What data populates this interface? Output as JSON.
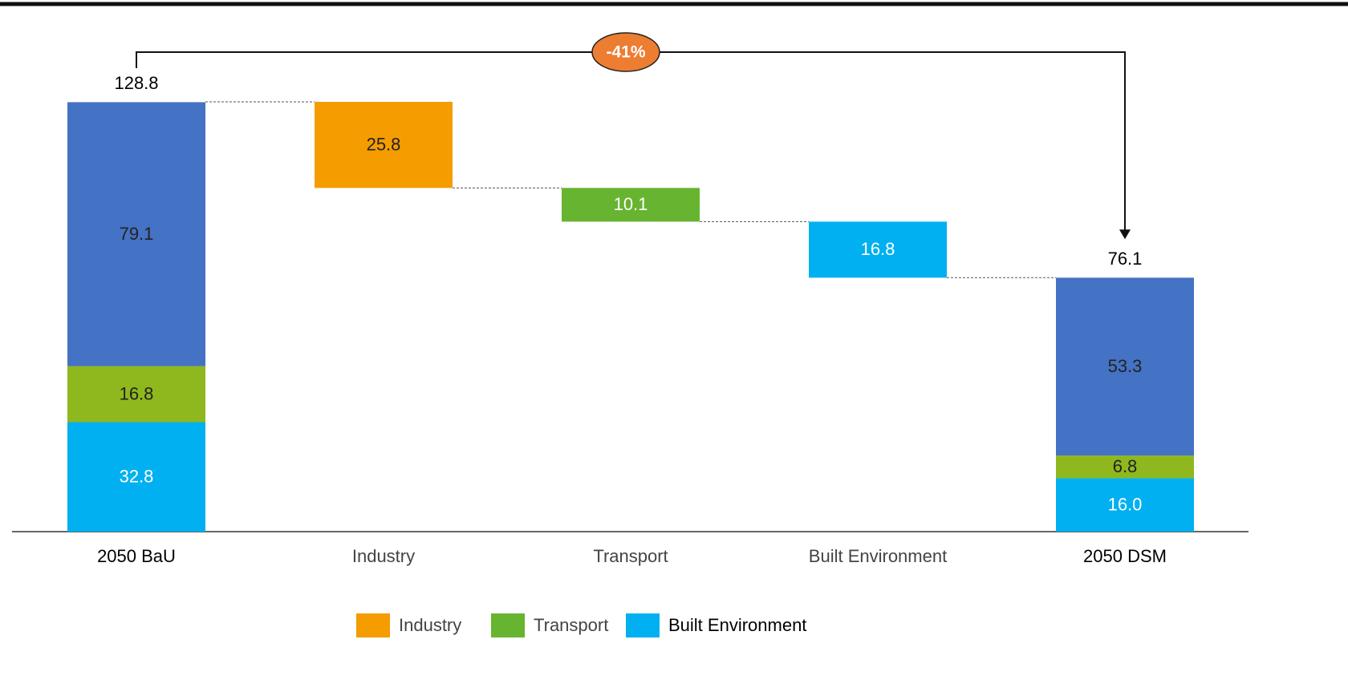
{
  "chart_data": {
    "type": "waterfall",
    "categories": [
      "2050 BaU",
      "Industry",
      "Transport",
      "Built Environment",
      "2050 DSM"
    ],
    "totals": [
      128.8,
      null,
      null,
      null,
      76.1
    ],
    "stacks": [
      {
        "color": "#00b0f0",
        "label_color": "#ffffff",
        "values": [
          32.8,
          null,
          null,
          null,
          16.0
        ],
        "value_labels": [
          "32.8",
          null,
          null,
          null,
          "16.0"
        ]
      },
      {
        "color": "#8fb81e",
        "label_color": "#222222",
        "values": [
          16.8,
          null,
          null,
          null,
          6.8
        ]
      },
      {
        "color": "#4472c4",
        "label_color": "#222222",
        "values": [
          79.1,
          null,
          null,
          null,
          53.3
        ]
      }
    ],
    "series": [
      {
        "name": "Industry",
        "color": "#f59c00",
        "label_color": "#222222",
        "values": [
          null,
          25.8,
          null,
          null,
          null
        ]
      },
      {
        "name": "Transport",
        "color": "#67b430",
        "label_color": "#ffffff",
        "values": [
          null,
          null,
          10.1,
          null,
          null
        ]
      },
      {
        "name": "Built Environment",
        "color": "#00b0f0",
        "label_color": "#ffffff",
        "values": [
          null,
          null,
          null,
          16.8,
          null
        ]
      }
    ],
    "annotation": {
      "text": "-41%",
      "color": "#ed7d31"
    }
  }
}
